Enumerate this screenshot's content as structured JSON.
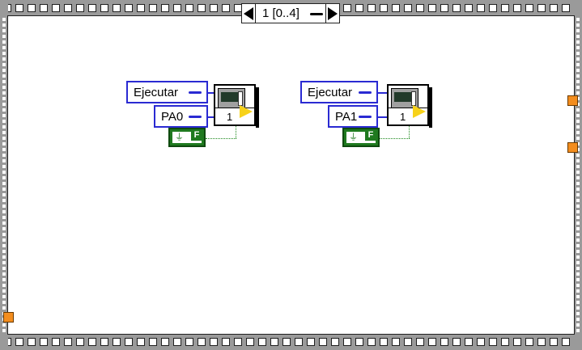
{
  "case_selector": {
    "label": "1 [0..4]"
  },
  "blocks": [
    {
      "control_label": "Ejecutar",
      "channel_label": "PA0",
      "vi_number": "1",
      "boolean_value": "F"
    },
    {
      "control_label": "Ejecutar",
      "channel_label": "PA1",
      "vi_number": "1",
      "boolean_value": "F"
    }
  ],
  "colors": {
    "frame": "#9a9a9a",
    "control_border": "#2a2ad2",
    "boolean_fill": "#1f7a1f",
    "tunnel": "#f38d1e"
  }
}
